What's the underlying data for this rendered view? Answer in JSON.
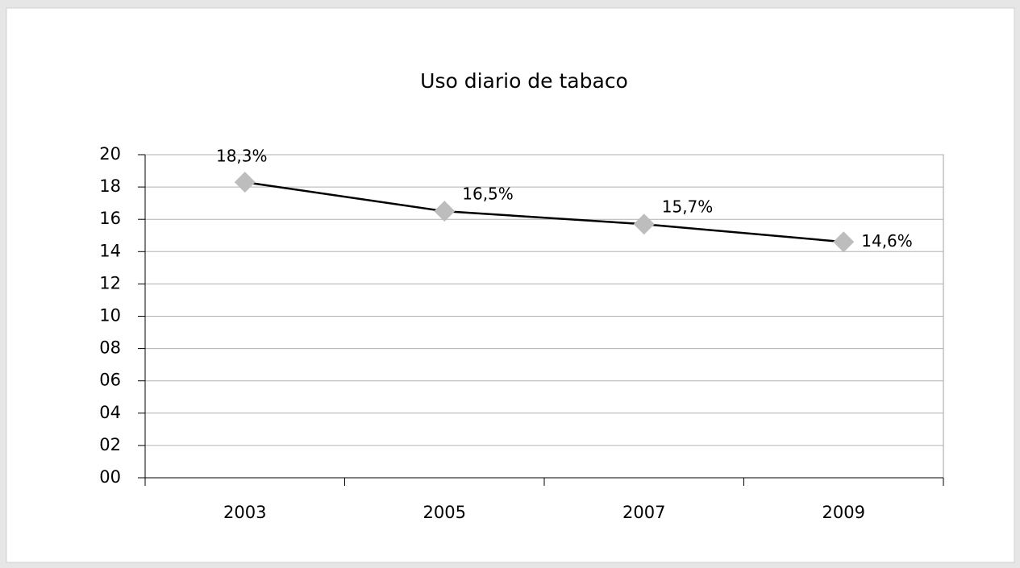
{
  "chart_data": {
    "type": "line",
    "title": "Uso diario de tabaco",
    "categories": [
      "2003",
      "2005",
      "2007",
      "2009"
    ],
    "series": [
      {
        "name": "Uso diario de tabaco",
        "color": "#000000",
        "marker_color": "#bdbdbd",
        "values": [
          18.3,
          16.5,
          15.7,
          14.6
        ],
        "value_labels": [
          "18,3%",
          "16,5%",
          "15,7%",
          "14,6%"
        ]
      }
    ],
    "ylim": [
      0,
      20
    ],
    "yticks": [
      {
        "value": 0,
        "label": "00"
      },
      {
        "value": 2,
        "label": "02"
      },
      {
        "value": 4,
        "label": "04"
      },
      {
        "value": 6,
        "label": "06"
      },
      {
        "value": 8,
        "label": "08"
      },
      10,
      12,
      14,
      16,
      18,
      20
    ],
    "grid": true
  }
}
